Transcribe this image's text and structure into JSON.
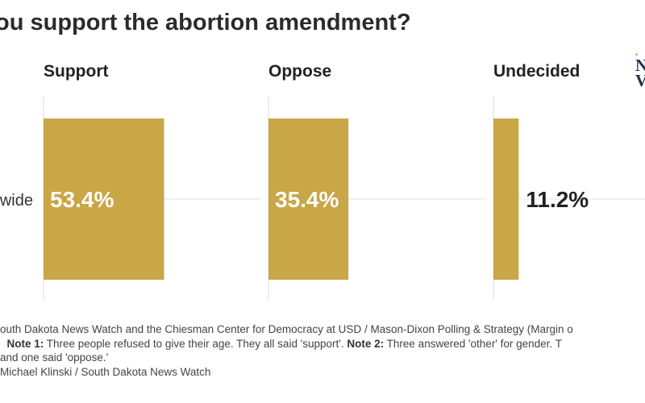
{
  "title": "ou support the abortion amendment?",
  "logo_text": "N\nV",
  "chart_data": {
    "type": "bar",
    "layout": "small-multiples-horizontal",
    "row_label": "wide",
    "series": [
      {
        "name": "Support",
        "value": 53.4,
        "label": "53.4%"
      },
      {
        "name": "Oppose",
        "value": 35.4,
        "label": "35.4%"
      },
      {
        "name": "Undecided",
        "value": 11.2,
        "label": "11.2%"
      }
    ],
    "xlim": [
      0,
      100
    ],
    "bar_color": "#c9a646",
    "label_inside_color": "#ffffff",
    "label_outside_color": "#222222",
    "grid": true
  },
  "footer": {
    "source_text": "outh Dakota News Watch and the Chiesman Center for Democracy at USD / Mason-Dixon Polling & Strategy (Margin o",
    "note_prefix": "• ",
    "note1_label": "Note 1:",
    "note1_text": " Three people refused to give their age. They all said 'support'. ",
    "note2_label": "Note 2:",
    "note2_text": " Three answered 'other' for gender. T",
    "note_continued": " and one said 'oppose.'",
    "credit": "Michael Klinski / South Dakota News Watch"
  }
}
